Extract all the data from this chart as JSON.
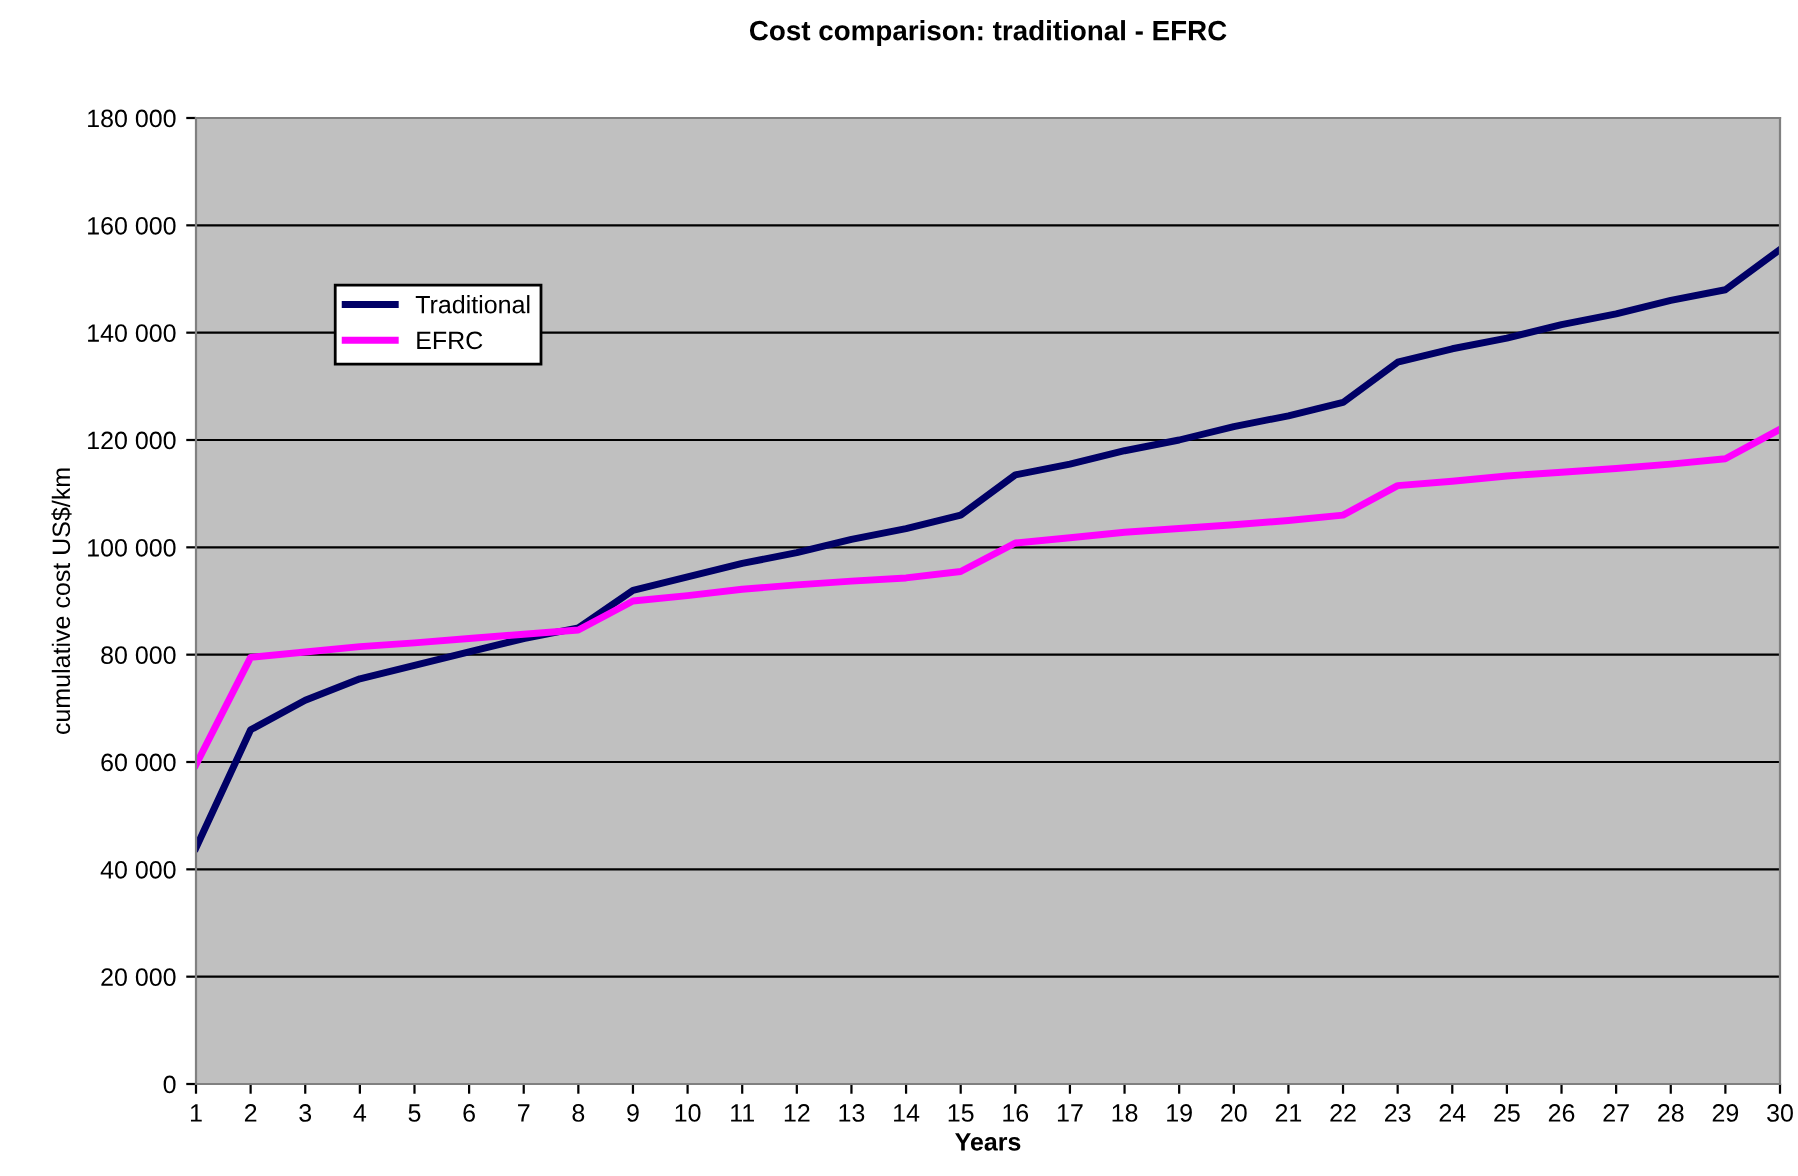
{
  "chart_data": {
    "type": "line",
    "title": "Cost comparison: traditional - EFRC",
    "xlabel": "Years",
    "ylabel": "cumulative cost US$/km",
    "categories": [
      "1",
      "2",
      "3",
      "4",
      "5",
      "6",
      "7",
      "8",
      "9",
      "10",
      "11",
      "12",
      "13",
      "14",
      "15",
      "16",
      "17",
      "18",
      "19",
      "20",
      "21",
      "22",
      "23",
      "24",
      "25",
      "26",
      "27",
      "28",
      "29",
      "30"
    ],
    "series": [
      {
        "name": "Traditional",
        "color": "#000066",
        "values": [
          44000,
          66000,
          71500,
          75500,
          78000,
          80500,
          83000,
          85000,
          92000,
          94500,
          97000,
          99000,
          101500,
          103500,
          106000,
          113500,
          115500,
          118000,
          120000,
          122500,
          124500,
          127000,
          134500,
          137000,
          139000,
          141500,
          143500,
          146000,
          148000,
          155500
        ]
      },
      {
        "name": "EFRC",
        "color": "#ff00ff",
        "values": [
          59500,
          79500,
          80500,
          81500,
          82200,
          83000,
          83800,
          84600,
          90000,
          91000,
          92200,
          93000,
          93700,
          94300,
          95500,
          100800,
          101800,
          102800,
          103500,
          104200,
          105000,
          106000,
          111500,
          112300,
          113300,
          114000,
          114700,
          115500,
          116500,
          122000
        ]
      }
    ],
    "ylim": [
      0,
      180000
    ],
    "yticks": [
      0,
      {
        "value": 20000,
        "label": "20 000"
      },
      {
        "value": 40000,
        "label": "40 000"
      },
      {
        "value": 60000,
        "label": "60 000"
      },
      {
        "value": 80000,
        "label": "80 000"
      },
      {
        "value": 100000,
        "label": "100 000"
      },
      {
        "value": 120000,
        "label": "120 000"
      },
      {
        "value": 140000,
        "label": "140 000"
      },
      {
        "value": 160000,
        "label": "160 000"
      },
      {
        "value": 180000,
        "label": "180 000"
      }
    ],
    "grid": "y",
    "legend": "top left",
    "marker": "none",
    "line_style": "solid"
  }
}
